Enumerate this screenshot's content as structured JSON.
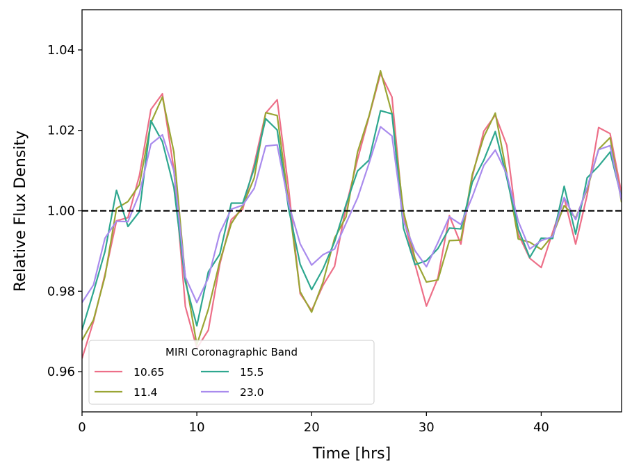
{
  "chart_data": {
    "type": "line",
    "title": "",
    "xlabel": "Time [hrs]",
    "ylabel": "Relative Flux Density",
    "xlim": [
      0,
      47
    ],
    "ylim": [
      0.95,
      1.05
    ],
    "xticks": [
      0,
      10,
      20,
      30,
      40
    ],
    "yticks": [
      0.96,
      0.98,
      1.0,
      1.02,
      1.04
    ],
    "ytick_labels": [
      "0.96",
      "0.98",
      "1.00",
      "1.02",
      "1.04"
    ],
    "xtick_labels": [
      "0",
      "10",
      "20",
      "30",
      "40"
    ],
    "grid": false,
    "reference_line": {
      "y": 1.0,
      "style": "dashed",
      "color": "#000000"
    },
    "x": [
      0,
      1,
      2,
      3,
      4,
      5,
      6,
      7,
      8,
      9,
      10,
      11,
      12,
      13,
      14,
      15,
      16,
      17,
      18,
      19,
      20,
      21,
      22,
      23,
      24,
      25,
      26,
      27,
      28,
      29,
      30,
      31,
      32,
      33,
      34,
      35,
      36,
      37,
      38,
      39,
      40,
      41,
      42,
      43,
      44,
      45,
      46,
      47
    ],
    "legend": {
      "title": "MIRI Coronagraphic Band",
      "position": "lower-left",
      "columns": 3
    },
    "series": [
      {
        "name": "10.65",
        "color": "#ed6f88",
        "values": [
          0.9633,
          0.9725,
          0.9842,
          0.9975,
          0.9983,
          1.0088,
          1.0252,
          1.0291,
          1.0102,
          0.9762,
          0.9658,
          0.9703,
          0.9867,
          0.9978,
          1.0004,
          1.0116,
          1.0243,
          1.0276,
          1.0054,
          0.9794,
          0.9752,
          0.9815,
          0.9862,
          1.0011,
          1.0128,
          1.0234,
          1.0341,
          1.0283,
          0.9982,
          0.9868,
          0.9763,
          0.9833,
          0.9988,
          0.9917,
          1.0085,
          1.0198,
          1.0238,
          1.0163,
          0.9942,
          0.9882,
          0.9859,
          0.9947,
          1.0032,
          0.9917,
          1.0039,
          1.0207,
          1.0192,
          1.0043
        ]
      },
      {
        "name": "11.4",
        "color": "#9aa534",
        "values": [
          0.9678,
          0.9729,
          0.9837,
          1.0006,
          1.0023,
          1.0065,
          1.0219,
          1.0283,
          1.0146,
          0.9833,
          0.9667,
          0.9755,
          0.9874,
          0.9968,
          1.0012,
          1.0082,
          1.0244,
          1.0237,
          1.0021,
          0.9799,
          0.9748,
          0.9823,
          0.9932,
          0.9985,
          1.0146,
          1.0236,
          1.0348,
          1.0242,
          0.9998,
          0.9882,
          0.9823,
          0.9828,
          0.9926,
          0.9927,
          1.0091,
          1.0184,
          1.0243,
          1.0093,
          0.993,
          0.9922,
          0.9904,
          0.9939,
          1.0013,
          0.9982,
          1.0053,
          1.0153,
          1.0182,
          1.0021
        ]
      },
      {
        "name": "15.5",
        "color": "#2ea78f",
        "values": [
          0.9704,
          0.9799,
          0.9899,
          1.0051,
          0.9961,
          0.9998,
          1.0224,
          1.0172,
          1.0058,
          0.9823,
          0.9714,
          0.9848,
          0.9892,
          1.0019,
          1.0019,
          1.0106,
          1.0229,
          1.0201,
          1.0005,
          0.9867,
          0.9804,
          0.9856,
          0.9923,
          1.0016,
          1.0099,
          1.0126,
          1.0249,
          1.0241,
          0.9957,
          0.9866,
          0.9876,
          0.9906,
          0.9957,
          0.9955,
          1.0071,
          1.0126,
          1.0197,
          1.0082,
          0.9955,
          0.9884,
          0.9932,
          0.9931,
          1.0061,
          0.9942,
          1.0082,
          1.0111,
          1.0146,
          1.0032
        ]
      },
      {
        "name": "23.0",
        "color": "#a98bed",
        "values": [
          0.9772,
          0.9816,
          0.9932,
          0.9974,
          0.9973,
          1.0043,
          1.0166,
          1.0189,
          1.0099,
          0.9835,
          0.9772,
          0.9833,
          0.9945,
          1.0004,
          1.0014,
          1.0056,
          1.0161,
          1.0164,
          1.0017,
          0.9918,
          0.9865,
          0.9891,
          0.9905,
          0.9969,
          1.0032,
          1.0118,
          1.0209,
          1.0186,
          0.9974,
          0.9901,
          0.9861,
          0.9921,
          0.9985,
          0.9966,
          1.0035,
          1.0113,
          1.0151,
          1.0091,
          0.9974,
          0.9905,
          0.9926,
          0.9936,
          1.0033,
          0.9978,
          1.0058,
          1.0152,
          1.0162,
          1.0026
        ]
      }
    ]
  }
}
